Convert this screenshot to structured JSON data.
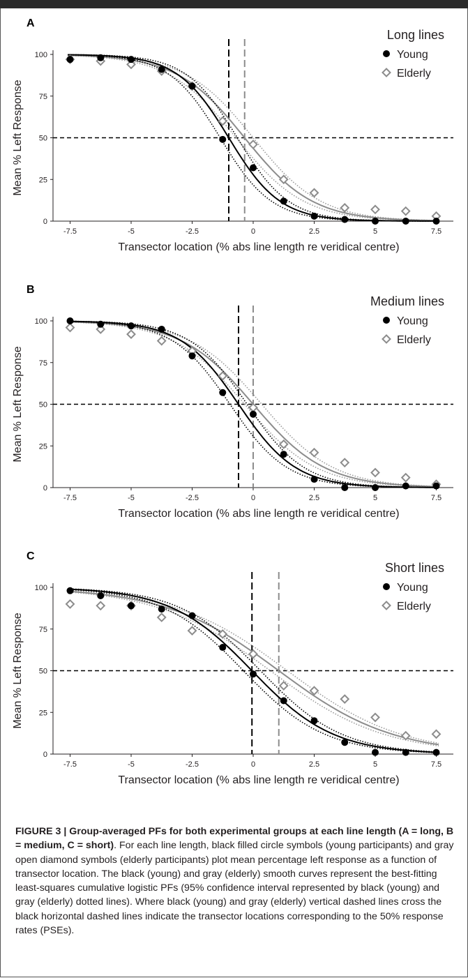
{
  "figure": {
    "caption_title": "FIGURE 3 | Group-averaged PFs for both experimental groups at each line length (A = long, B = medium, C = short)",
    "caption_body": ". For each line length, black filled circle symbols (young participants) and gray open diamond symbols (elderly participants) plot mean percentage left response as a function of transector location. The black (young) and gray (elderly) smooth curves represent the best-fitting least-squares cumulative logistic PFs (95% confidence interval represented by black (young) and gray (elderly) dotted lines). Where black (young) and gray (elderly) vertical dashed lines cross the black horizontal dashed lines indicate the transector locations corresponding to the 50% response rates (PSEs)."
  },
  "colors": {
    "young": "#000000",
    "elderly": "#8c8c8c",
    "young_ci": "#000000",
    "elderly_ci": "#9a9a9a"
  },
  "chart_data": [
    {
      "type": "scatter",
      "panel": "A",
      "legend_title": "Long lines",
      "xlabel": "Transector location (% abs line length re veridical centre)",
      "ylabel": "Mean % Left Response",
      "xlim": [
        -8.2,
        8.2
      ],
      "ylim": [
        0,
        100
      ],
      "xticks": [
        "-7.5",
        "-5",
        "-2.5",
        "0",
        "2.5",
        "5",
        "7.5"
      ],
      "yticks": [
        "0",
        "25",
        "50",
        "75",
        "100"
      ],
      "x": [
        -7.5,
        -6.25,
        -5,
        -3.75,
        -2.5,
        -1.25,
        0,
        1.25,
        2.5,
        3.75,
        5,
        6.25,
        7.5
      ],
      "pse": {
        "young": -1.0,
        "elderly": -0.35
      },
      "slope": {
        "young": 0.95,
        "elderly": 0.72
      },
      "series": [
        {
          "name": "Young",
          "marker": "circle",
          "values": [
            97,
            98,
            97,
            91,
            81,
            49,
            32,
            12,
            3,
            1,
            0,
            0,
            0
          ]
        },
        {
          "name": "Elderly",
          "marker": "diamond",
          "values": [
            97,
            96,
            94,
            90,
            81,
            60,
            46,
            25,
            17,
            8,
            7,
            6,
            3
          ]
        }
      ]
    },
    {
      "type": "scatter",
      "panel": "B",
      "legend_title": "Medium lines",
      "xlabel": "Transector location (% abs line length re veridical centre)",
      "ylabel": "Mean % Left Response",
      "xlim": [
        -8.2,
        8.2
      ],
      "ylim": [
        0,
        100
      ],
      "xticks": [
        "-7.5",
        "-5",
        "-2.5",
        "0",
        "2.5",
        "5",
        "7.5"
      ],
      "yticks": [
        "0",
        "25",
        "50",
        "75",
        "100"
      ],
      "x": [
        -7.5,
        -6.25,
        -5,
        -3.75,
        -2.5,
        -1.25,
        0,
        1.25,
        2.5,
        3.75,
        5,
        6.25,
        7.5
      ],
      "pse": {
        "young": -0.6,
        "elderly": 0.0
      },
      "slope": {
        "young": 0.85,
        "elderly": 0.68
      },
      "series": [
        {
          "name": "Young",
          "marker": "circle",
          "values": [
            100,
            98,
            97,
            95,
            79,
            57,
            44,
            20,
            5,
            0,
            0,
            1,
            1
          ]
        },
        {
          "name": "Elderly",
          "marker": "diamond",
          "values": [
            96,
            95,
            92,
            88,
            82,
            67,
            48,
            26,
            21,
            15,
            9,
            6,
            2
          ]
        }
      ]
    },
    {
      "type": "scatter",
      "panel": "C",
      "legend_title": "Short lines",
      "xlabel": "Transector location (% abs line length re veridical centre)",
      "ylabel": "Mean % Left Response",
      "xlim": [
        -8.2,
        8.2
      ],
      "ylim": [
        0,
        100
      ],
      "xticks": [
        "-7.5",
        "-5",
        "-2.5",
        "0",
        "2.5",
        "5",
        "7.5"
      ],
      "yticks": [
        "0",
        "25",
        "50",
        "75",
        "100"
      ],
      "x": [
        -7.5,
        -6.25,
        -5,
        -3.75,
        -2.5,
        -1.25,
        0,
        1.25,
        2.5,
        3.75,
        5,
        6.25,
        7.5
      ],
      "pse": {
        "young": -0.05,
        "elderly": 1.05
      },
      "slope": {
        "young": 0.6,
        "elderly": 0.43
      },
      "series": [
        {
          "name": "Young",
          "marker": "circle",
          "values": [
            98,
            95,
            89,
            87,
            83,
            64,
            48,
            32,
            20,
            7,
            1,
            1,
            1
          ]
        },
        {
          "name": "Elderly",
          "marker": "diamond",
          "values": [
            90,
            89,
            89,
            82,
            74,
            72,
            60,
            41,
            38,
            33,
            22,
            11,
            12
          ]
        }
      ]
    }
  ]
}
